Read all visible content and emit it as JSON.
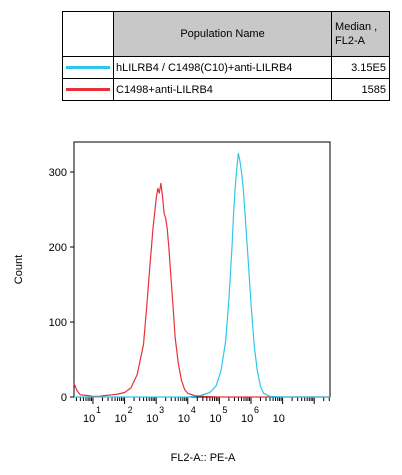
{
  "legend_table": {
    "header_name": "Population Name",
    "header_median": "Median ,",
    "header_median_sub": "FL2-A",
    "rows": [
      {
        "name": "hLILRB4 / C1498(C10)+anti-LILRB4",
        "median": "3.15E5",
        "color": "#2ec7ea"
      },
      {
        "name": "C1498+anti-LILRB4",
        "median": "1585",
        "color": "#e8303a"
      }
    ]
  },
  "chart_data": {
    "type": "line",
    "xlabel": "FL2-A:: PE-A",
    "ylabel": "Count",
    "xscale": "log",
    "xlim": [
      0.4,
      8.5
    ],
    "ylim": [
      0,
      340
    ],
    "yticks": [
      0,
      100,
      200,
      300
    ],
    "ytick_labels": [
      "0",
      "100",
      "200",
      "300"
    ],
    "xticks": [
      1,
      2,
      3,
      4,
      5,
      6,
      7
    ],
    "xtick_base": "10",
    "xtick_exponents": [
      "1",
      "2",
      "3",
      "4",
      "5",
      "6",
      ""
    ],
    "series": [
      {
        "name": "C1498+anti-LILRB4",
        "color": "#e8303a",
        "x": [
          0.4,
          0.5,
          0.6,
          0.8,
          1.0,
          1.2,
          1.4,
          1.6,
          1.8,
          2.0,
          2.2,
          2.4,
          2.6,
          2.7,
          2.8,
          2.9,
          3.0,
          3.05,
          3.1,
          3.15,
          3.2,
          3.25,
          3.3,
          3.35,
          3.4,
          3.45,
          3.5,
          3.55,
          3.6,
          3.7,
          3.8,
          3.9,
          4.0,
          4.2,
          4.5,
          5.0,
          6.0,
          7.0,
          8.5
        ],
        "y": [
          18,
          8,
          3,
          2,
          1,
          1,
          2,
          3,
          4,
          6,
          12,
          30,
          70,
          120,
          175,
          225,
          265,
          278,
          272,
          285,
          268,
          245,
          238,
          225,
          200,
          170,
          140,
          110,
          80,
          45,
          22,
          10,
          5,
          2,
          1,
          0,
          0,
          0,
          0
        ]
      },
      {
        "name": "hLILRB4 / C1498(C10)+anti-LILRB4",
        "color": "#2ec7ea",
        "x": [
          0.4,
          2.0,
          4.0,
          4.4,
          4.7,
          4.9,
          5.05,
          5.2,
          5.3,
          5.4,
          5.45,
          5.5,
          5.55,
          5.6,
          5.65,
          5.7,
          5.75,
          5.8,
          5.9,
          6.0,
          6.1,
          6.2,
          6.3,
          6.4,
          6.6,
          7.0,
          8.5
        ],
        "y": [
          0,
          0,
          0,
          2,
          6,
          15,
          35,
          75,
          130,
          200,
          245,
          280,
          305,
          325,
          315,
          300,
          280,
          250,
          190,
          125,
          70,
          35,
          14,
          5,
          1,
          0,
          0
        ]
      }
    ]
  }
}
